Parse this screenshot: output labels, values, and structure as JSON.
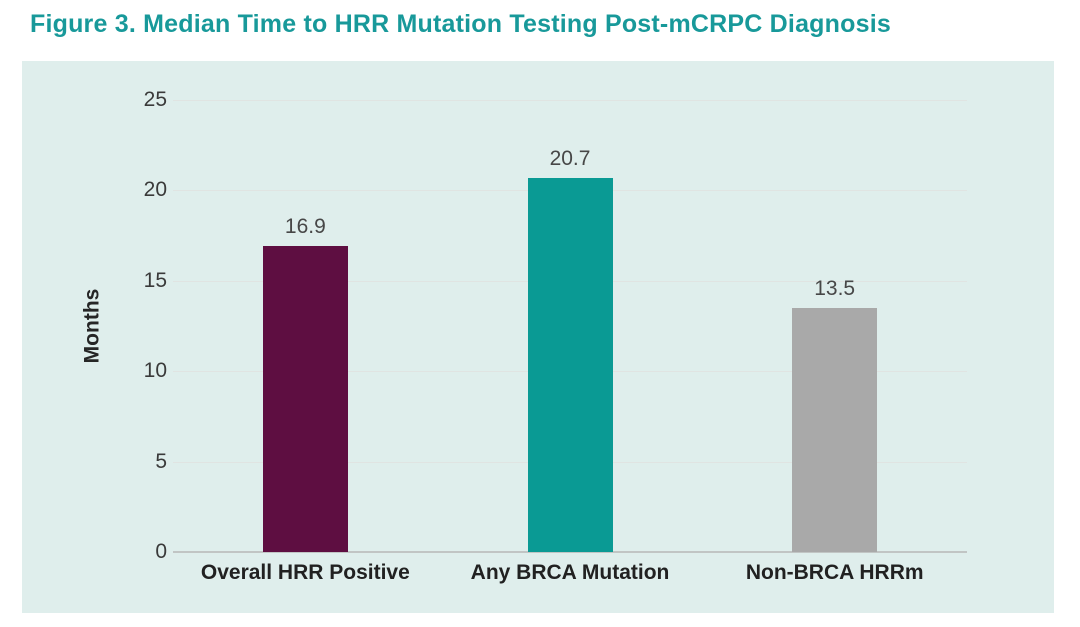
{
  "figure": {
    "title": "Figure 3. Median Time to HRR Mutation Testing Post-mCRPC Diagnosis",
    "title_color": "#18999a"
  },
  "chart_data": {
    "type": "bar",
    "title": "Figure 3. Median Time to HRR Mutation Testing Post-mCRPC Diagnosis",
    "categories": [
      "Overall HRR Positive",
      "Any BRCA Mutation",
      "Non-BRCA HRRm"
    ],
    "values": [
      16.9,
      20.7,
      13.5
    ],
    "value_labels": [
      "16.9",
      "20.7",
      "13.5"
    ],
    "xlabel": "",
    "ylabel": "Months",
    "ylim": [
      0,
      25
    ],
    "yticks": [
      0,
      5,
      10,
      15,
      20,
      25
    ],
    "bar_colors": [
      "#5e0e41",
      "#0a9a94",
      "#a9a9a9"
    ],
    "grid": true,
    "legend": false,
    "plot_background": "#dfeeec"
  }
}
